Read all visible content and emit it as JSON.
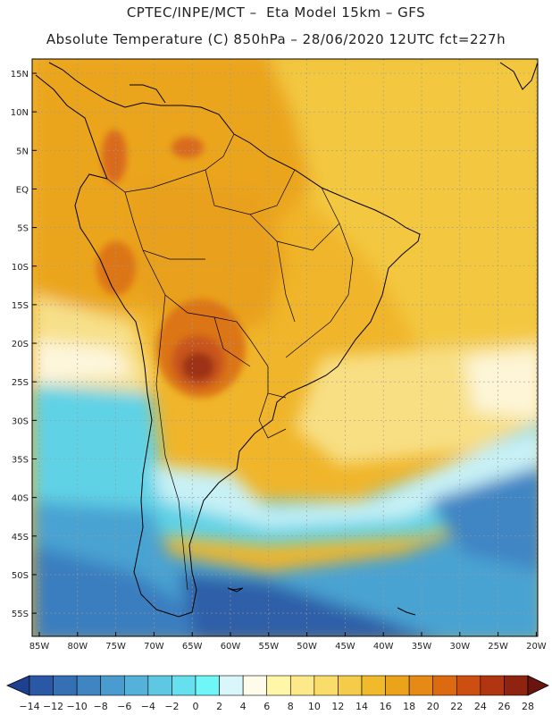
{
  "title_line1": "CPTEC/INPE/MCT –  Eta Model 15km – GFS",
  "title_line2": "Absolute Temperature (C) 850hPa – 28/06/2020 12UTC fct=227h",
  "map": {
    "lat_labels": [
      "15N",
      "10N",
      "5N",
      "EQ",
      "5S",
      "10S",
      "15S",
      "20S",
      "25S",
      "30S",
      "35S",
      "40S",
      "45S",
      "50S",
      "55S"
    ],
    "lon_labels": [
      "85W",
      "80W",
      "75W",
      "70W",
      "65W",
      "60W",
      "55W",
      "50W",
      "45W",
      "40W",
      "35W",
      "30W",
      "25W",
      "20W"
    ]
  },
  "colorbar": {
    "labels": [
      "-14",
      "-12",
      "-10",
      "-8",
      "-6",
      "-4",
      "-2",
      "0",
      "2",
      "4",
      "6",
      "8",
      "10",
      "12",
      "14",
      "16",
      "18",
      "20",
      "22",
      "24",
      "26",
      "28"
    ],
    "colors": [
      "#1f3f8f",
      "#2a58a4",
      "#3570b5",
      "#3f85c2",
      "#4a9ccf",
      "#56b1da",
      "#5ec8e3",
      "#66e0ee",
      "#6ff6f6",
      "#d9f6fa",
      "#fffbea",
      "#fff6a8",
      "#fde98a",
      "#f9dc6a",
      "#f5cc4a",
      "#f1b92c",
      "#eba31c",
      "#e58a14",
      "#dc6a10",
      "#cc4e10",
      "#b03510",
      "#8e2410",
      "#6a1410"
    ]
  }
}
